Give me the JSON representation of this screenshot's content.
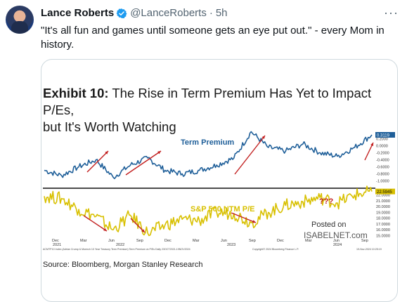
{
  "post": {
    "author_name": "Lance Roberts",
    "handle": "@LanceRoberts",
    "separator": "·",
    "time": "5h",
    "text": "\"It's all fun and games until someone gets an eye put out.\" - every Mom in history.",
    "verified_icon": "verified-badge-icon",
    "more_icon": "more-dots-icon"
  },
  "image": {
    "exhibit_label": "Exhibit 10:",
    "exhibit_title_line1": "The Rise in Term Premium Has Yet to Impact P/Es,",
    "exhibit_title_line2": "but It's Worth Watching",
    "source": "Source: Bloomberg, Morgan Stanley Research",
    "watermark_line1": "Posted on",
    "watermark_line2": "ISABELNET.com",
    "annotation": "???",
    "footer_left": "ACMTP10 Index (Adrian Crump & Moench 10 Year Treasury Term Premium) Term Premium vs P/Es  Daily 23OCT2021-19NOV2024",
    "footer_mid": "Copyright© 2024 Bloomberg Finance L.P.",
    "footer_right": "19-Nov-2024 10:25:19"
  },
  "chart_data": [
    {
      "type": "line",
      "title": "Term Premium",
      "y_ticks": [
        "0.2000",
        "0.0000",
        "-0.2000",
        "-0.4000",
        "-0.6000",
        "-0.8000",
        "-1.0000"
      ],
      "last_value_label": "0.3119",
      "ylim": [
        -1.05,
        0.45
      ],
      "color": "#1f5f99",
      "x": [
        "2021-10",
        "2021-12",
        "2022-02",
        "2022-04",
        "2022-06",
        "2022-08",
        "2022-10",
        "2022-12",
        "2023-02",
        "2023-04",
        "2023-06",
        "2023-08",
        "2023-10",
        "2023-12",
        "2024-02",
        "2024-04",
        "2024-06",
        "2024-08",
        "2024-10",
        "2024-11"
      ],
      "values": [
        -0.7,
        -0.85,
        -0.6,
        -0.4,
        -0.9,
        -0.55,
        -0.35,
        -0.7,
        -0.8,
        -0.7,
        -0.55,
        -0.35,
        0.4,
        -0.05,
        -0.15,
        0.05,
        -0.2,
        -0.3,
        -0.05,
        0.31
      ]
    },
    {
      "type": "line",
      "title": "S&P 500 NTM P/E",
      "y_ticks": [
        "22.0000",
        "21.0000",
        "20.0000",
        "19.0000",
        "18.0000",
        "17.0000",
        "16.0000",
        "15.0000"
      ],
      "last_value_label": "22.5945",
      "ylim": [
        14.8,
        22.8
      ],
      "color": "#d8c000",
      "x": [
        "2021-10",
        "2021-12",
        "2022-02",
        "2022-04",
        "2022-06",
        "2022-08",
        "2022-10",
        "2022-12",
        "2023-02",
        "2023-04",
        "2023-06",
        "2023-08",
        "2023-10",
        "2023-12",
        "2024-02",
        "2024-04",
        "2024-06",
        "2024-08",
        "2024-10",
        "2024-11"
      ],
      "values": [
        21.8,
        21.4,
        19.5,
        18.3,
        16.0,
        18.5,
        15.4,
        16.8,
        17.8,
        17.6,
        19.0,
        18.8,
        17.2,
        19.0,
        20.2,
        20.8,
        21.5,
        20.6,
        22.0,
        22.6
      ]
    }
  ],
  "x_axis": {
    "ticks": [
      "Dec",
      "Mar",
      "Jun",
      "Sep",
      "Dec",
      "Mar",
      "Jun",
      "Sep",
      "Dec",
      "Mar",
      "Jun",
      "Sep"
    ],
    "years": [
      "2021",
      "2022",
      "2023",
      "2024"
    ]
  }
}
